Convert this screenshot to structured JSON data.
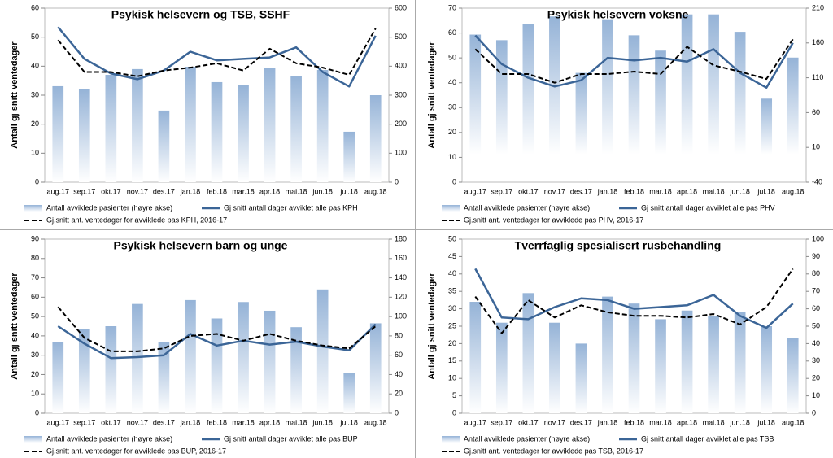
{
  "chart_data": [
    {
      "type": "combo",
      "title": "Psykisk helsevern og TSB, SSHF",
      "ylabel": "Antall gj snitt ventedager",
      "categories": [
        "aug.17",
        "sep.17",
        "okt.17",
        "nov.17",
        "des.17",
        "jan.18",
        "feb.18",
        "mar.18",
        "apr.18",
        "mai.18",
        "jun.18",
        "jul.18",
        "aug.18"
      ],
      "ylim": [
        0,
        60
      ],
      "yticks": [
        0,
        10,
        20,
        30,
        40,
        50,
        60
      ],
      "y2lim": [
        0,
        600
      ],
      "y2ticks": [
        0,
        100,
        200,
        300,
        400,
        500,
        600
      ],
      "series": [
        {
          "name": "Antall avviklede pasienter (høyre akse)",
          "type": "bar",
          "axis": "y2",
          "color": "#95b3d7",
          "values": [
            331,
            322,
            370,
            390,
            247,
            398,
            345,
            334,
            395,
            365,
            387,
            174,
            300
          ]
        },
        {
          "name": "Gj snitt antall dager avviklet alle pas KPH",
          "type": "line",
          "color": "#3b6597",
          "values": [
            53.5,
            42.5,
            37.5,
            35.5,
            38.5,
            45,
            42,
            42.5,
            43,
            46.5,
            38,
            33,
            50.5
          ]
        },
        {
          "name": "Gj.snitt ant. ventedager for avviklede pas KPH, 2016-17",
          "type": "line",
          "dash": true,
          "color": "#000000",
          "values": [
            49,
            38,
            38,
            36.5,
            38.5,
            39.5,
            41,
            38.5,
            46,
            41,
            39.5,
            37,
            53
          ]
        }
      ]
    },
    {
      "type": "combo",
      "title": "Psykisk helsevern voksne",
      "ylabel": "Antall gj snitt ventedager",
      "categories": [
        "aug.17",
        "sep.17",
        "okt.17",
        "nov.17",
        "des.17",
        "jan.18",
        "feb.18",
        "mar.18",
        "apr.18",
        "mai.18",
        "jun.18",
        "jul.18",
        "aug.18"
      ],
      "ylim": [
        0,
        70
      ],
      "yticks": [
        0,
        10,
        20,
        30,
        40,
        50,
        60,
        70
      ],
      "y2lim": [
        -40,
        210
      ],
      "y2ticks": [
        -40,
        10,
        60,
        110,
        160,
        210
      ],
      "series": [
        {
          "name": "Antall avviklede pasienter (høyre akse)",
          "type": "bar",
          "axis": "y2",
          "color": "#95b3d7",
          "values": [
            172,
            164,
            187,
            198,
            117,
            194,
            171,
            149,
            201,
            201,
            176,
            80,
            139
          ]
        },
        {
          "name": "Gj snitt antall dager avviklet alle pas PHV",
          "type": "line",
          "color": "#3b6597",
          "values": [
            59,
            47.5,
            42,
            38.5,
            41,
            50,
            49,
            50,
            48.5,
            53.5,
            44,
            38,
            56
          ]
        },
        {
          "name": "Gj.snitt ant. ventedager for avviklede pas PHV, 2016-17",
          "type": "line",
          "dash": true,
          "color": "#000000",
          "values": [
            53.5,
            43.5,
            43.5,
            40,
            43.5,
            43.5,
            44.5,
            43.5,
            54.5,
            47,
            44.5,
            41.5,
            57.5
          ]
        }
      ]
    },
    {
      "type": "combo",
      "title": "Psykisk helsevern barn og unge",
      "ylabel": "Antall gj snitt ventedager",
      "categories": [
        "aug.17",
        "sep.17",
        "okt.17",
        "nov.17",
        "des.17",
        "jan.18",
        "feb.18",
        "mar.18",
        "apr.18",
        "mai.18",
        "jun.18",
        "jul.18",
        "aug.18"
      ],
      "ylim": [
        0,
        90
      ],
      "yticks": [
        0,
        10,
        20,
        30,
        40,
        50,
        60,
        70,
        80,
        90
      ],
      "y2lim": [
        0,
        180
      ],
      "y2ticks": [
        0,
        20,
        40,
        60,
        80,
        100,
        120,
        140,
        160,
        180
      ],
      "series": [
        {
          "name": "Antall avviklede pasienter (høyre akse)",
          "type": "bar",
          "axis": "y2",
          "color": "#95b3d7",
          "values": [
            74,
            87,
            90,
            113,
            74,
            117,
            98,
            115,
            106,
            89,
            128,
            42,
            93
          ]
        },
        {
          "name": "Gj snitt antall dager avviklet alle pas BUP",
          "type": "line",
          "color": "#3b6597",
          "values": [
            45,
            36,
            28.5,
            29,
            30,
            41,
            35,
            37.5,
            35.5,
            37,
            34.5,
            32.5,
            46
          ]
        },
        {
          "name": "Gj.snitt ant. ventedager for avviklede pas BUP, 2016-17",
          "type": "line",
          "dash": true,
          "color": "#000000",
          "values": [
            55,
            39,
            32,
            32,
            33.5,
            40,
            41,
            37.5,
            41,
            37.5,
            35,
            33.5,
            45
          ]
        }
      ]
    },
    {
      "type": "combo",
      "title": "Tverrfaglig spesialisert rusbehandling",
      "ylabel": "Antall gj snitt ventedager",
      "categories": [
        "aug.17",
        "sep.17",
        "okt.17",
        "nov.17",
        "des.17",
        "jan.18",
        "feb.18",
        "mar.18",
        "apr.18",
        "mai.18",
        "jun.18",
        "jul.18",
        "aug.18"
      ],
      "ylim": [
        0,
        50
      ],
      "yticks": [
        0,
        5,
        10,
        15,
        20,
        25,
        30,
        35,
        40,
        45,
        50
      ],
      "y2lim": [
        0,
        100
      ],
      "y2ticks": [
        0,
        10,
        20,
        30,
        40,
        50,
        60,
        70,
        80,
        90,
        100
      ],
      "series": [
        {
          "name": "Antall avviklede pasienter (høyre akse)",
          "type": "bar",
          "axis": "y2",
          "color": "#95b3d7",
          "values": [
            64,
            52,
            69,
            52,
            40,
            67,
            63,
            54,
            59,
            56,
            58,
            50,
            43
          ]
        },
        {
          "name": "Gj snitt antall dager avviklet alle pas TSB",
          "type": "line",
          "color": "#3b6597",
          "values": [
            41.5,
            27.5,
            27,
            30.5,
            33,
            32.5,
            30,
            30.5,
            31,
            34,
            28,
            24.5,
            31.5
          ]
        },
        {
          "name": "Gj.snitt ant. ventedager for avviklede pas TSB, 2016-17",
          "type": "line",
          "dash": true,
          "color": "#000000",
          "values": [
            33.5,
            23,
            32.5,
            27.5,
            31,
            29,
            28,
            28,
            27.5,
            28.5,
            25.5,
            30.5,
            41.5
          ]
        }
      ]
    }
  ]
}
